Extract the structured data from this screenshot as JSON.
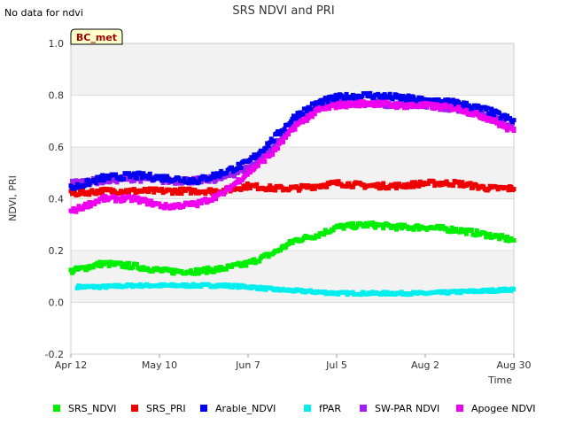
{
  "notice": "No data for ndvi",
  "site_tag": "BC_met",
  "colors": {
    "SRS_NDVI": "#00ee00",
    "SRS_PRI": "#ee0000",
    "Arable_NDVI": "#0000ee",
    "fPAR": "#00eeee",
    "SW-PAR NDVI": "#a020f0",
    "Apogee NDVI": "#ee00ee"
  },
  "chart_data": {
    "type": "scatter",
    "title": "SRS NDVI and PRI",
    "xlabel": "Time",
    "ylabel": "NDVI, PRI",
    "xlim": [
      "2024-04-12",
      "2024-08-30"
    ],
    "ylim": [
      -0.2,
      1.0
    ],
    "x_ticks": [
      {
        "date": "2024-04-12",
        "label": "Apr 12"
      },
      {
        "date": "2024-05-10",
        "label": "May 10"
      },
      {
        "date": "2024-06-07",
        "label": "Jun 7"
      },
      {
        "date": "2024-07-05",
        "label": "Jul 5"
      },
      {
        "date": "2024-08-02",
        "label": "Aug 2"
      },
      {
        "date": "2024-08-30",
        "label": "Aug 30"
      }
    ],
    "y_ticks": [
      -0.2,
      0.0,
      0.2,
      0.4,
      0.6,
      0.8,
      1.0
    ],
    "y_tick_labels": [
      "-0.2",
      "0.0",
      "0.2",
      "0.4",
      "0.6",
      "0.8",
      "1.0"
    ],
    "grid": "horizontal bands",
    "legend_placement": "bottom",
    "series": [
      {
        "name": "SRS_NDVI",
        "x": [
          "2024-04-12",
          "2024-04-22",
          "2024-05-02",
          "2024-05-12",
          "2024-05-22",
          "2024-05-30",
          "2024-06-07",
          "2024-06-15",
          "2024-06-22",
          "2024-06-29",
          "2024-07-05",
          "2024-07-15",
          "2024-07-25",
          "2024-08-02",
          "2024-08-12",
          "2024-08-22",
          "2024-08-30"
        ],
        "y": [
          0.12,
          0.15,
          0.14,
          0.12,
          0.12,
          0.13,
          0.15,
          0.19,
          0.24,
          0.26,
          0.29,
          0.3,
          0.29,
          0.29,
          0.28,
          0.26,
          0.24
        ]
      },
      {
        "name": "SRS_PRI",
        "x": [
          "2024-04-12",
          "2024-04-22",
          "2024-05-02",
          "2024-05-12",
          "2024-05-22",
          "2024-05-30",
          "2024-06-07",
          "2024-06-15",
          "2024-06-22",
          "2024-06-29",
          "2024-07-05",
          "2024-07-15",
          "2024-07-25",
          "2024-08-02",
          "2024-08-12",
          "2024-08-22",
          "2024-08-30"
        ],
        "y": [
          0.42,
          0.43,
          0.43,
          0.43,
          0.43,
          0.43,
          0.45,
          0.44,
          0.44,
          0.45,
          0.46,
          0.45,
          0.45,
          0.46,
          0.46,
          0.44,
          0.44
        ]
      },
      {
        "name": "Arable_NDVI",
        "x": [
          "2024-04-12",
          "2024-04-22",
          "2024-05-02",
          "2024-05-12",
          "2024-05-22",
          "2024-05-30",
          "2024-06-07",
          "2024-06-15",
          "2024-06-22",
          "2024-06-29",
          "2024-07-05",
          "2024-07-15",
          "2024-07-25",
          "2024-08-02",
          "2024-08-12",
          "2024-08-22",
          "2024-08-30"
        ],
        "y": [
          0.44,
          0.48,
          0.49,
          0.48,
          0.47,
          0.5,
          0.54,
          0.63,
          0.72,
          0.77,
          0.79,
          0.8,
          0.79,
          0.78,
          0.77,
          0.74,
          0.7
        ]
      },
      {
        "name": "fPAR",
        "x": [
          "2024-04-14",
          "2024-04-22",
          "2024-05-02",
          "2024-05-12",
          "2024-05-22",
          "2024-05-30",
          "2024-06-07",
          "2024-06-15",
          "2024-06-22",
          "2024-06-29",
          "2024-07-05",
          "2024-07-15",
          "2024-07-25",
          "2024-08-02",
          "2024-08-12",
          "2024-08-22",
          "2024-08-30"
        ],
        "y": [
          0.06,
          0.06,
          0.065,
          0.065,
          0.065,
          0.065,
          0.06,
          0.05,
          0.045,
          0.04,
          0.035,
          0.035,
          0.035,
          0.035,
          0.04,
          0.045,
          0.05
        ]
      },
      {
        "name": "SW-PAR NDVI",
        "x": [
          "2024-04-12",
          "2024-04-22",
          "2024-05-02",
          "2024-05-12",
          "2024-05-22",
          "2024-05-30",
          "2024-06-07",
          "2024-06-15",
          "2024-06-22",
          "2024-06-29",
          "2024-07-05",
          "2024-07-15",
          "2024-07-25",
          "2024-08-02",
          "2024-08-12",
          "2024-08-22",
          "2024-08-30"
        ],
        "y": [
          0.46,
          0.47,
          0.48,
          0.47,
          0.47,
          0.48,
          0.52,
          0.6,
          0.7,
          0.75,
          0.77,
          0.77,
          0.76,
          0.76,
          0.75,
          0.72,
          0.68
        ]
      },
      {
        "name": "Apogee NDVI",
        "x": [
          "2024-04-12",
          "2024-04-22",
          "2024-05-02",
          "2024-05-12",
          "2024-05-22",
          "2024-05-30",
          "2024-06-07",
          "2024-06-15",
          "2024-06-22",
          "2024-06-29",
          "2024-07-05",
          "2024-07-15",
          "2024-07-25",
          "2024-08-02",
          "2024-08-12",
          "2024-08-22",
          "2024-08-30"
        ],
        "y": [
          0.35,
          0.4,
          0.4,
          0.37,
          0.38,
          0.42,
          0.5,
          0.58,
          0.68,
          0.74,
          0.76,
          0.77,
          0.76,
          0.76,
          0.75,
          0.71,
          0.66
        ]
      }
    ]
  }
}
